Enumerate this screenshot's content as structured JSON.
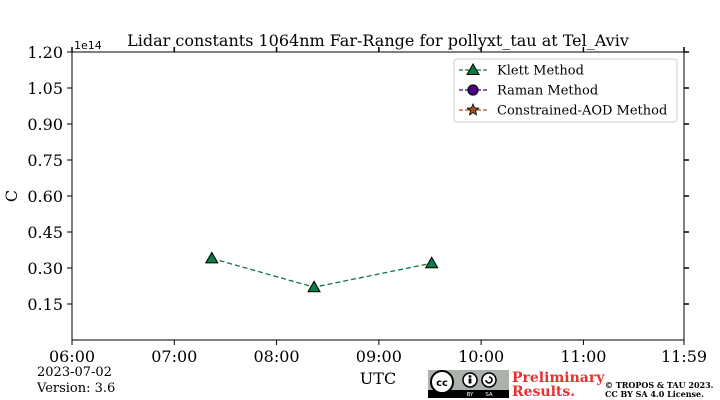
{
  "chart_data": {
    "type": "line",
    "title": "Lidar constants 1064nm Far-Range for pollyxt_tau at Tel_Aviv",
    "xlabel": "UTC",
    "ylabel": "C",
    "y_offset_label": "1e14",
    "xlim": [
      "06:00",
      "11:59"
    ],
    "ylim": [
      0,
      1.2
    ],
    "x_ticks": [
      "06:00",
      "07:00",
      "08:00",
      "09:00",
      "10:00",
      "11:00",
      "11:59"
    ],
    "y_ticks": [
      "1.20",
      "1.05",
      "0.90",
      "0.75",
      "0.60",
      "0.45",
      "0.30",
      "0.15"
    ],
    "y_tick_values": [
      1.2,
      1.05,
      0.9,
      0.75,
      0.6,
      0.45,
      0.3,
      0.15
    ],
    "grid": false,
    "legend_position": "top-right",
    "series": [
      {
        "name": "Klett Method",
        "marker": "triangle",
        "color": "#0b7a43",
        "points": [
          {
            "x": "07:22",
            "y": 0.34
          },
          {
            "x": "08:22",
            "y": 0.22
          },
          {
            "x": "09:31",
            "y": 0.32
          }
        ]
      },
      {
        "name": "Raman Method",
        "marker": "circle",
        "color": "#4b0082",
        "points": []
      },
      {
        "name": "Constrained-AOD Method",
        "marker": "star",
        "color": "#a0522d",
        "points": []
      }
    ]
  },
  "footer": {
    "date": "2023-07-02",
    "version": "Version: 3.6",
    "preliminary_line1": "Preliminary",
    "preliminary_line2": "Results.",
    "copyright_line1": "© TROPOS & TAU 2023.",
    "copyright_line2": "CC BY SA 4.0 License.",
    "license_badge_text": "cc",
    "license_by": "BY",
    "license_sa": "SA"
  },
  "colors": {
    "klett": "#0b7a43",
    "raman": "#4b0082",
    "constrained": "#a0522d",
    "preliminary": "#e8312f"
  }
}
